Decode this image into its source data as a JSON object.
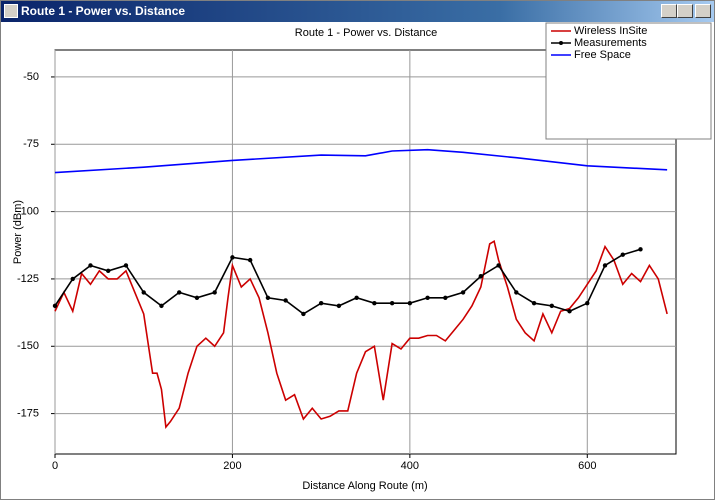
{
  "window": {
    "title": "Route 1 - Power vs. Distance"
  },
  "chart_data": {
    "type": "line",
    "title": "Route 1 - Power vs. Distance",
    "x_label": "Distance Along Route (m)",
    "y_label": "Power (dBm)",
    "xlim": [
      0,
      700
    ],
    "xticks": [
      0,
      200,
      400,
      600
    ],
    "ylim": [
      -190,
      -40
    ],
    "yticks": [
      -50,
      -75,
      -100,
      -125,
      -150,
      -175
    ],
    "grid": true,
    "legend": "top-right",
    "series": [
      {
        "name": "Wireless InSite",
        "color": "#cc0000",
        "markers": false,
        "x": [
          0,
          10,
          20,
          30,
          40,
          50,
          60,
          70,
          80,
          90,
          100,
          110,
          115,
          120,
          125,
          130,
          140,
          150,
          160,
          170,
          180,
          190,
          195,
          200,
          210,
          220,
          230,
          240,
          250,
          260,
          270,
          280,
          290,
          300,
          310,
          320,
          330,
          340,
          350,
          360,
          370,
          380,
          390,
          400,
          410,
          420,
          430,
          440,
          450,
          460,
          470,
          480,
          490,
          495,
          500,
          510,
          520,
          530,
          540,
          550,
          560,
          570,
          580,
          590,
          600,
          610,
          620,
          630,
          640,
          650,
          660,
          670,
          680,
          690
        ],
        "values": [
          -137,
          -130,
          -137,
          -123,
          -127,
          -122,
          -125,
          -125,
          -122,
          -130,
          -138,
          -160,
          -160,
          -166,
          -180,
          -178,
          -173,
          -160,
          -150,
          -147,
          -150,
          -145,
          -132,
          -120,
          -128,
          -125,
          -132,
          -145,
          -160,
          -170,
          -168,
          -177,
          -173,
          -177,
          -176,
          -174,
          -174,
          -160,
          -152,
          -150,
          -170,
          -149,
          -151,
          -147,
          -147,
          -146,
          -146,
          -148,
          -144,
          -140,
          -135,
          -128,
          -112,
          -111,
          -118,
          -128,
          -140,
          -145,
          -148,
          -138,
          -145,
          -137,
          -136,
          -132,
          -127,
          -122,
          -113,
          -118,
          -127,
          -123,
          -126,
          -120,
          -125,
          -138
        ]
      },
      {
        "name": "Measurements",
        "color": "#000000",
        "markers": true,
        "x": [
          0,
          20,
          40,
          60,
          80,
          100,
          120,
          140,
          160,
          180,
          200,
          220,
          240,
          260,
          280,
          300,
          320,
          340,
          360,
          380,
          400,
          420,
          440,
          460,
          480,
          500,
          520,
          540,
          560,
          580,
          600,
          620,
          640,
          660
        ],
        "values": [
          -135,
          -125,
          -120,
          -122,
          -120,
          -130,
          -135,
          -130,
          -132,
          -130,
          -117,
          -118,
          -132,
          -133,
          -138,
          -134,
          -135,
          -132,
          -134,
          -134,
          -134,
          -132,
          -132,
          -130,
          -124,
          -120,
          -130,
          -134,
          -135,
          -137,
          -134,
          -120,
          -116,
          -114
        ]
      },
      {
        "name": "Free Space",
        "color": "#0000ff",
        "markers": false,
        "x": [
          0,
          100,
          200,
          300,
          350,
          380,
          420,
          460,
          520,
          600,
          690
        ],
        "values": [
          -85.5,
          -83.5,
          -81,
          -79,
          -79.3,
          -77.5,
          -77,
          -78,
          -80,
          -83,
          -84.5
        ]
      }
    ]
  }
}
